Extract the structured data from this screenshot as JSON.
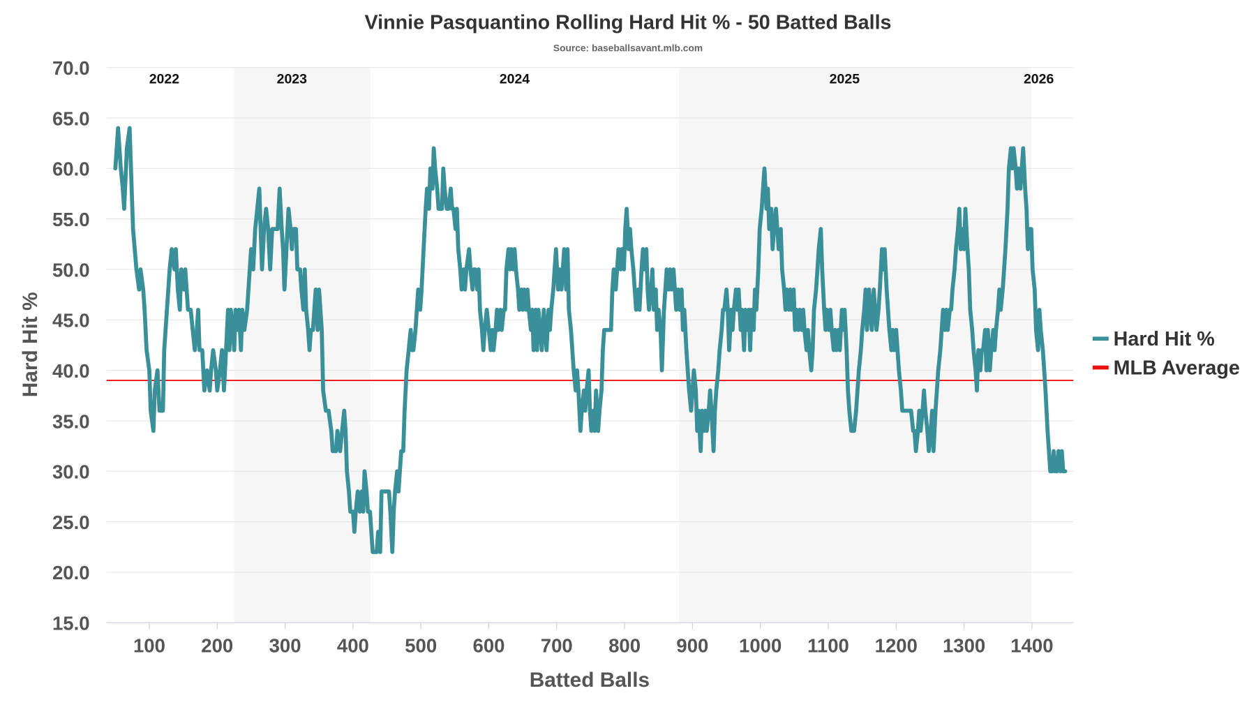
{
  "chart_data": {
    "type": "line",
    "title": "Vinnie Pasquantino Rolling Hard Hit % - 50 Batted Balls",
    "subtitle": "Source: baseballsavant.mlb.com",
    "xlabel": "Batted Balls",
    "ylabel": "Hard Hit %",
    "xlim": [
      37,
      1461
    ],
    "ylim": [
      15,
      70
    ],
    "xticks": [
      100,
      200,
      300,
      400,
      500,
      600,
      700,
      800,
      900,
      1000,
      1100,
      1200,
      1300,
      1400
    ],
    "yticks": [
      "15.0",
      "20.0",
      "25.0",
      "30.0",
      "35.0",
      "40.0",
      "45.0",
      "50.0",
      "55.0",
      "60.0",
      "65.0",
      "70.0"
    ],
    "grid": true,
    "legend_placement": "right",
    "seasons": [
      {
        "label": "2022",
        "center": 122,
        "range": [
          37,
          225
        ],
        "shaded": false
      },
      {
        "label": "2023",
        "center": 310,
        "range": [
          225,
          426
        ],
        "shaded": true
      },
      {
        "label": "2024",
        "center": 638,
        "range": [
          426,
          880
        ],
        "shaded": false
      },
      {
        "label": "2025",
        "center": 1124,
        "range": [
          880,
          1399
        ],
        "shaded": true
      },
      {
        "label": "2026",
        "center": 1410,
        "range": [
          1399,
          1461
        ],
        "shaded": false
      }
    ],
    "reference_line": {
      "name": "MLB Average",
      "value": 39,
      "color": "#ee1111"
    },
    "series": [
      {
        "name": "Hard Hit %",
        "color": "#3a9098",
        "x": [
          50,
          54,
          58,
          61,
          63,
          67,
          71,
          73,
          76,
          81,
          85,
          87,
          91,
          93,
          96,
          100,
          102,
          106,
          108,
          112,
          115,
          120,
          122,
          126,
          130,
          133,
          137,
          139,
          142,
          145,
          147,
          151,
          153,
          157,
          161,
          164,
          167,
          170,
          172,
          174,
          178,
          181,
          185,
          189,
          191,
          194,
          198,
          200,
          204,
          207,
          210,
          213,
          216,
          218,
          220,
          223,
          225,
          227,
          230,
          232,
          235,
          237,
          240,
          244,
          248,
          250,
          253,
          256,
          259,
          262,
          264,
          266,
          269,
          272,
          275,
          278,
          281,
          284,
          289,
          292,
          295,
          297,
          299,
          302,
          305,
          308,
          310,
          312,
          316,
          318,
          322,
          324,
          327,
          329,
          331,
          334,
          336,
          338,
          341,
          343,
          345,
          348,
          350,
          354,
          356,
          360,
          364,
          368,
          370,
          375,
          377,
          381,
          384,
          387,
          389,
          391,
          394,
          396,
          400,
          402,
          404,
          407,
          410,
          413,
          415,
          417,
          420,
          422,
          425,
          427,
          429,
          435,
          437,
          440,
          442,
          453,
          455,
          458,
          460,
          462,
          465,
          467,
          471,
          474,
          476,
          479,
          482,
          485,
          487,
          489,
          492,
          494,
          496,
          499,
          501,
          504,
          507,
          509,
          512,
          514,
          517,
          519,
          521,
          524,
          526,
          531,
          533,
          535,
          538,
          541,
          544,
          546,
          548,
          551,
          553,
          555,
          558,
          560,
          563,
          565,
          567,
          571,
          573,
          576,
          578,
          580,
          583,
          585,
          587,
          590,
          592,
          594,
          597,
          600,
          603,
          605,
          607,
          610,
          612,
          614,
          617,
          619,
          622,
          624,
          626,
          629,
          631,
          633,
          636,
          638,
          640,
          643,
          645,
          648,
          650,
          652,
          655,
          657,
          659,
          662,
          664,
          666,
          669,
          671,
          673,
          676,
          678,
          681,
          683,
          685,
          688,
          690,
          692,
          695,
          697,
          699,
          702,
          704,
          707,
          709,
          711,
          714,
          716,
          718,
          721,
          723,
          725,
          728,
          730,
          732,
          735,
          737,
          740,
          742,
          744,
          747,
          749,
          751,
          754,
          756,
          758,
          761,
          763,
          766,
          768,
          770,
          774,
          780,
          782,
          784,
          787,
          789,
          791,
          794,
          796,
          799,
          801,
          803,
          806,
          808,
          810,
          813,
          815,
          817,
          820,
          822,
          825,
          827,
          829,
          832,
          834,
          836,
          839,
          841,
          843,
          846,
          848,
          850,
          853,
          855,
          858,
          860,
          862,
          865,
          867,
          869,
          872,
          874,
          876,
          879,
          881,
          884,
          886,
          888,
          891,
          893,
          895,
          898,
          900,
          902,
          905,
          907,
          909,
          912,
          914,
          917,
          919,
          921,
          924,
          926,
          928,
          931,
          933,
          935,
          938,
          940,
          943,
          945,
          947,
          950,
          952,
          954,
          957,
          959,
          961,
          964,
          966,
          968,
          971,
          973,
          976,
          978,
          980,
          983,
          985,
          987,
          990,
          992,
          994,
          997,
          999,
          1002,
          1004,
          1006,
          1009,
          1011,
          1013,
          1016,
          1018,
          1020,
          1023,
          1025,
          1027,
          1030,
          1032,
          1035,
          1037,
          1039,
          1042,
          1044,
          1046,
          1049,
          1051,
          1053,
          1056,
          1058,
          1061,
          1063,
          1065,
          1068,
          1070,
          1072,
          1075,
          1077,
          1079,
          1082,
          1084,
          1086,
          1089,
          1091,
          1094,
          1096,
          1098,
          1101,
          1103,
          1105,
          1108,
          1110,
          1112,
          1115,
          1117,
          1120,
          1122,
          1124,
          1127,
          1129,
          1131,
          1134,
          1138,
          1141,
          1143,
          1145,
          1148,
          1150,
          1153,
          1155,
          1157,
          1160,
          1162,
          1164,
          1167,
          1169,
          1171,
          1174,
          1176,
          1179,
          1181,
          1183,
          1186,
          1188,
          1190,
          1193,
          1195,
          1197,
          1200,
          1202,
          1204,
          1207,
          1209,
          1219,
          1222,
          1225,
          1227,
          1229,
          1232,
          1234,
          1236,
          1239,
          1241,
          1243,
          1246,
          1248,
          1251,
          1253,
          1255,
          1258,
          1260,
          1262,
          1265,
          1267,
          1269,
          1272,
          1274,
          1276,
          1279,
          1281,
          1283,
          1286,
          1288,
          1291,
          1293,
          1295,
          1298,
          1300,
          1302,
          1305,
          1307,
          1309,
          1312,
          1314,
          1317,
          1319,
          1321,
          1324,
          1326,
          1328,
          1331,
          1333,
          1335,
          1338,
          1340,
          1343,
          1345,
          1347,
          1350,
          1352,
          1354,
          1357,
          1359,
          1361,
          1364,
          1366,
          1369,
          1371,
          1373,
          1376,
          1378,
          1380,
          1383,
          1385,
          1387,
          1390,
          1392,
          1394,
          1397,
          1399,
          1401,
          1404,
          1406,
          1409,
          1411,
          1413,
          1416,
          1418,
          1420,
          1423,
          1425,
          1427,
          1430,
          1432,
          1434,
          1437,
          1439,
          1442,
          1444,
          1446,
          1449
        ],
        "y": [
          60,
          64,
          60,
          58,
          56,
          62,
          64,
          60,
          54,
          50,
          48,
          50,
          48,
          46,
          42,
          40,
          36,
          34,
          38,
          40,
          36,
          36,
          42,
          46,
          50,
          52,
          50,
          52,
          48,
          46,
          50,
          48,
          50,
          46,
          46,
          44,
          42,
          44,
          46,
          42,
          42,
          38,
          40,
          38,
          40,
          42,
          40,
          38,
          40,
          42,
          38,
          42,
          46,
          42,
          46,
          44,
          42,
          46,
          44,
          46,
          42,
          46,
          44,
          46,
          50,
          52,
          50,
          54,
          56,
          58,
          54,
          50,
          54,
          56,
          54,
          50,
          54,
          54,
          54,
          58,
          54,
          52,
          48,
          52,
          56,
          54,
          52,
          54,
          54,
          50,
          50,
          48,
          46,
          50,
          46,
          44,
          42,
          44,
          44,
          46,
          48,
          44,
          48,
          44,
          38,
          36,
          36,
          34,
          32,
          32,
          34,
          32,
          34,
          36,
          34,
          30,
          28,
          26,
          26,
          24,
          26,
          28,
          26,
          28,
          26,
          30,
          28,
          26,
          26,
          24,
          22,
          22,
          24,
          22,
          28,
          28,
          26,
          22,
          26,
          28,
          30,
          28,
          32,
          32,
          36,
          40,
          42,
          44,
          42,
          42,
          44,
          46,
          48,
          46,
          48,
          52,
          56,
          58,
          56,
          60,
          58,
          62,
          60,
          58,
          56,
          56,
          60,
          58,
          56,
          56,
          58,
          56,
          56,
          54,
          56,
          52,
          50,
          48,
          50,
          48,
          50,
          52,
          50,
          48,
          50,
          50,
          48,
          50,
          46,
          44,
          42,
          44,
          46,
          44,
          42,
          44,
          42,
          44,
          46,
          44,
          46,
          44,
          46,
          46,
          50,
          52,
          50,
          52,
          50,
          52,
          50,
          48,
          46,
          48,
          46,
          48,
          46,
          48,
          46,
          44,
          46,
          42,
          46,
          42,
          46,
          44,
          42,
          46,
          44,
          42,
          46,
          44,
          46,
          48,
          50,
          52,
          48,
          50,
          48,
          50,
          52,
          48,
          52,
          46,
          44,
          42,
          40,
          38,
          40,
          38,
          34,
          36,
          38,
          36,
          38,
          40,
          36,
          34,
          36,
          34,
          38,
          34,
          36,
          38,
          42,
          44,
          44,
          44,
          48,
          50,
          48,
          50,
          52,
          50,
          52,
          50,
          54,
          56,
          52,
          54,
          52,
          50,
          48,
          46,
          48,
          46,
          50,
          52,
          50,
          52,
          48,
          46,
          48,
          50,
          46,
          48,
          44,
          46,
          44,
          40,
          46,
          48,
          50,
          48,
          50,
          48,
          50,
          48,
          46,
          48,
          46,
          48,
          44,
          46,
          42,
          40,
          38,
          36,
          38,
          40,
          38,
          34,
          36,
          32,
          36,
          34,
          36,
          34,
          36,
          38,
          36,
          32,
          36,
          38,
          40,
          42,
          44,
          46,
          46,
          48,
          46,
          42,
          46,
          44,
          46,
          48,
          46,
          48,
          44,
          46,
          42,
          46,
          44,
          46,
          42,
          46,
          44,
          48,
          46,
          50,
          54,
          56,
          58,
          60,
          56,
          58,
          54,
          56,
          52,
          54,
          56,
          54,
          52,
          54,
          50,
          48,
          46,
          48,
          46,
          48,
          46,
          48,
          44,
          46,
          44,
          46,
          44,
          46,
          44,
          42,
          44,
          42,
          40,
          42,
          46,
          48,
          50,
          52,
          54,
          50,
          46,
          44,
          46,
          44,
          46,
          44,
          42,
          44,
          42,
          44,
          42,
          46,
          44,
          46,
          42,
          38,
          36,
          34,
          34,
          36,
          38,
          40,
          42,
          44,
          46,
          48,
          44,
          48,
          46,
          44,
          48,
          46,
          44,
          46,
          48,
          52,
          50,
          52,
          48,
          46,
          44,
          42,
          44,
          42,
          44,
          42,
          40,
          38,
          36,
          36,
          36,
          34,
          34,
          32,
          34,
          36,
          34,
          36,
          38,
          36,
          34,
          32,
          34,
          36,
          32,
          36,
          38,
          40,
          42,
          44,
          46,
          44,
          46,
          44,
          46,
          46,
          48,
          50,
          52,
          54,
          56,
          52,
          54,
          52,
          56,
          52,
          50,
          46,
          44,
          42,
          40,
          38,
          42,
          40,
          42,
          42,
          44,
          40,
          44,
          40,
          42,
          44,
          42,
          44,
          46,
          48,
          46,
          48,
          50,
          52,
          56,
          60,
          62,
          60,
          62,
          60,
          58,
          60,
          58,
          60,
          62,
          58,
          56,
          52,
          54,
          54,
          50,
          48,
          44,
          42,
          46,
          44,
          42,
          40,
          38,
          34,
          32,
          30,
          30,
          32,
          30,
          30,
          32,
          30,
          32,
          30,
          30
        ]
      }
    ]
  }
}
